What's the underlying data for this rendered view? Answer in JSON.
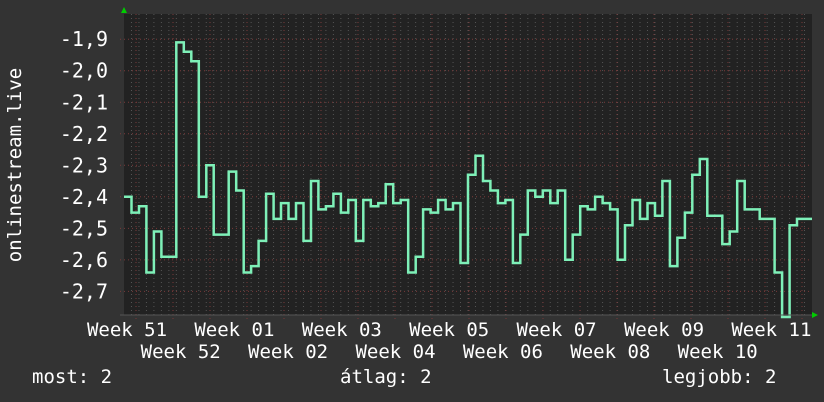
{
  "chart_data": {
    "type": "line",
    "step": true,
    "ylabel": "onlinestream.live",
    "xlabel": "",
    "ylim": [
      -2.775,
      -1.82
    ],
    "yticks": [
      -1.9,
      -2.0,
      -2.1,
      -2.2,
      -2.3,
      -2.4,
      -2.5,
      -2.6,
      -2.7
    ],
    "ytick_labels": [
      "-1,9",
      "-2,0",
      "-2,1",
      "-2,2",
      "-2,3",
      "-2,4",
      "-2,5",
      "-2,6",
      "-2,7"
    ],
    "xtick_labels": [
      "Week 51",
      "Week 52",
      "Week 01",
      "Week 02",
      "Week 03",
      "Week 04",
      "Week 05",
      "Week 06",
      "Week 07",
      "Week 08",
      "Week 09",
      "Week 10",
      "Week 11"
    ],
    "grid": true,
    "line_color": "#7ef0b8",
    "values": [
      -2.4,
      -2.45,
      -2.43,
      -2.64,
      -2.51,
      -2.59,
      -2.59,
      -1.91,
      -1.94,
      -1.97,
      -2.4,
      -2.3,
      -2.52,
      -2.52,
      -2.32,
      -2.38,
      -2.64,
      -2.62,
      -2.54,
      -2.39,
      -2.47,
      -2.42,
      -2.47,
      -2.42,
      -2.54,
      -2.35,
      -2.44,
      -2.43,
      -2.39,
      -2.45,
      -2.41,
      -2.54,
      -2.41,
      -2.43,
      -2.42,
      -2.36,
      -2.42,
      -2.41,
      -2.64,
      -2.59,
      -2.44,
      -2.45,
      -2.41,
      -2.44,
      -2.42,
      -2.61,
      -2.33,
      -2.27,
      -2.35,
      -2.38,
      -2.42,
      -2.41,
      -2.61,
      -2.52,
      -2.38,
      -2.4,
      -2.38,
      -2.42,
      -2.38,
      -2.6,
      -2.52,
      -2.43,
      -2.44,
      -2.4,
      -2.42,
      -2.44,
      -2.6,
      -2.49,
      -2.41,
      -2.47,
      -2.42,
      -2.46,
      -2.35,
      -2.62,
      -2.53,
      -2.45,
      -2.33,
      -2.28,
      -2.46,
      -2.46,
      -2.55,
      -2.51,
      -2.35,
      -2.44,
      -2.44,
      -2.47,
      -2.47,
      -2.64,
      -2.8,
      -2.49,
      -2.47,
      -2.47
    ]
  },
  "footer": {
    "current": "most: 2",
    "average": "átlag: 2",
    "best": "legjobb: 2"
  }
}
